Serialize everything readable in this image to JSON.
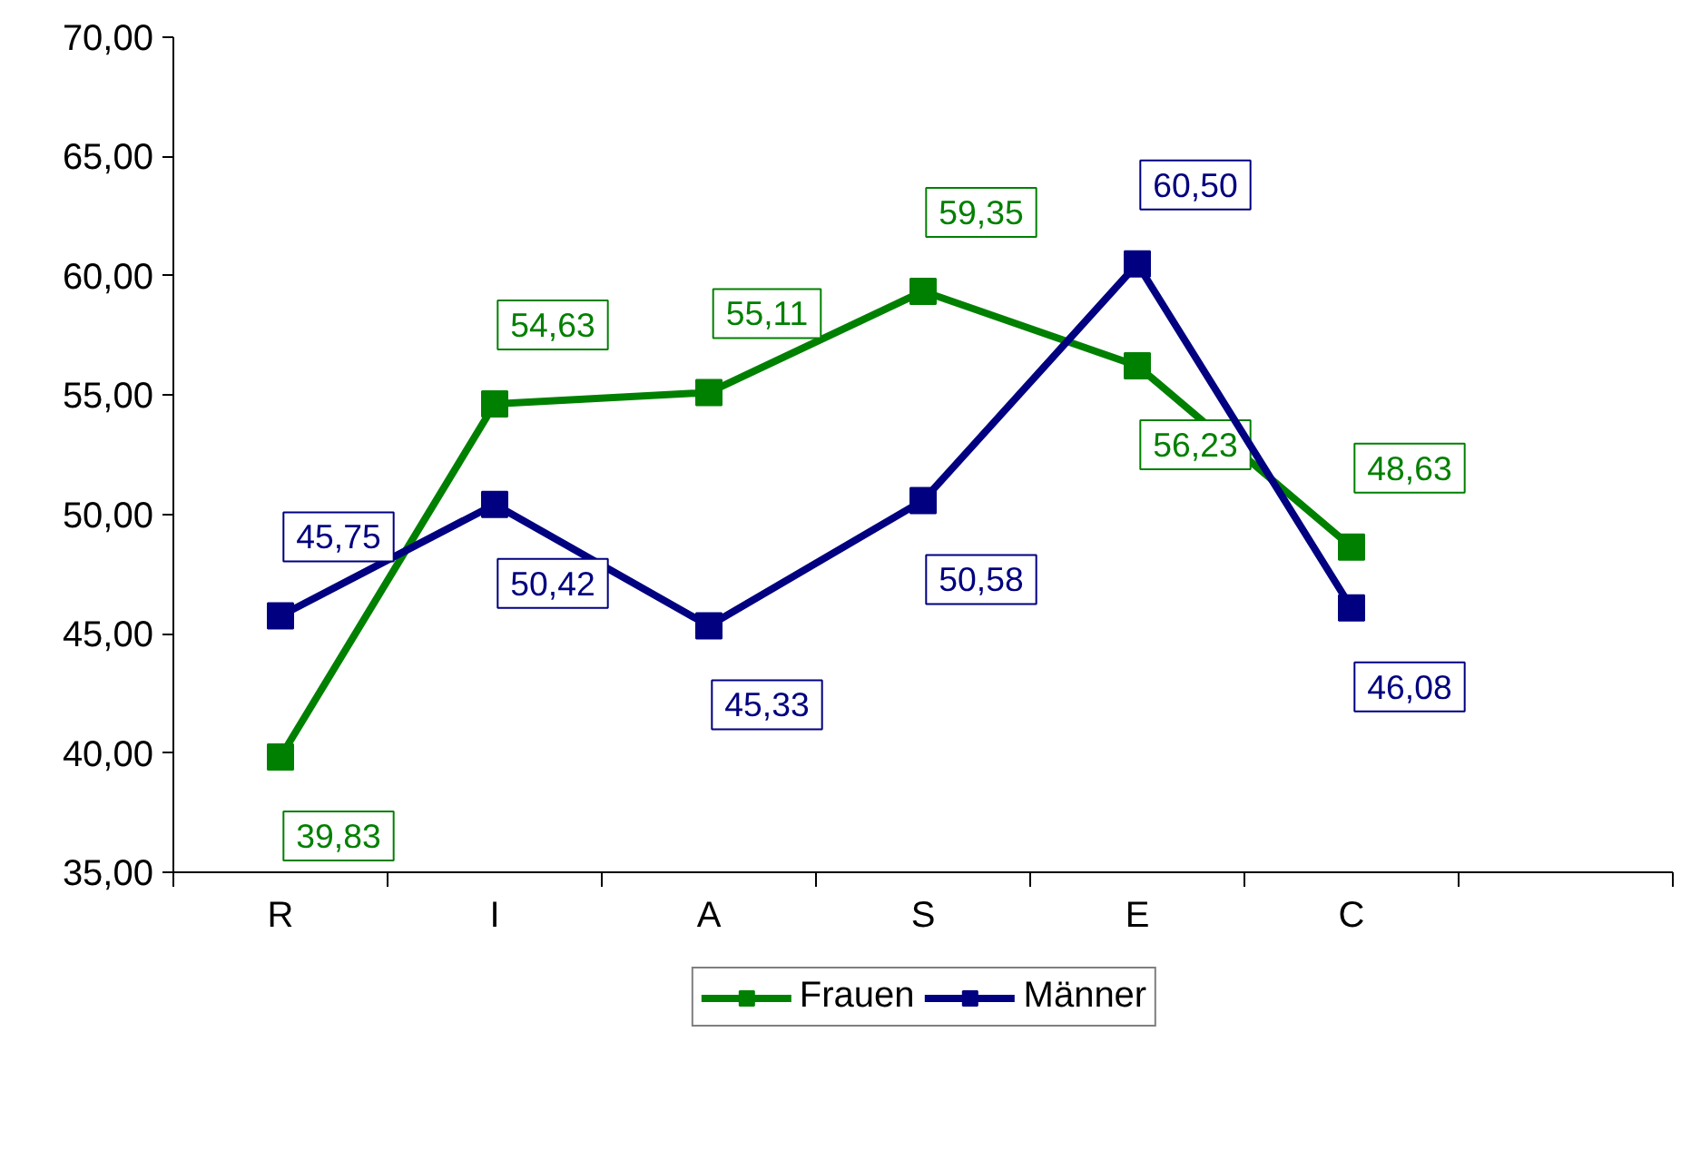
{
  "chart_data": {
    "type": "line",
    "categories": [
      "R",
      "I",
      "A",
      "S",
      "E",
      "C",
      null
    ],
    "series": [
      {
        "name": "Frauen",
        "color": "#008000",
        "values": [
          39.83,
          54.63,
          55.11,
          59.35,
          56.23,
          48.63,
          null
        ],
        "value_labels": [
          "39,83",
          "54,63",
          "55,11",
          "59,35",
          "56,23",
          "48,63",
          null
        ]
      },
      {
        "name": "Männer",
        "color": "#000080",
        "values": [
          45.75,
          50.42,
          45.33,
          50.58,
          60.5,
          46.08,
          null
        ],
        "value_labels": [
          "45,75",
          "50,42",
          "45,33",
          "50,58",
          "60,50",
          "46,08",
          null
        ]
      }
    ],
    "ylim": [
      35,
      70
    ],
    "yticks": [
      {
        "value": 35,
        "label": "35,00"
      },
      {
        "value": 40,
        "label": "40,00"
      },
      {
        "value": 45,
        "label": "45,00"
      },
      {
        "value": 50,
        "label": "50,00"
      },
      {
        "value": 55,
        "label": "55,00"
      },
      {
        "value": 60,
        "label": "60,00"
      },
      {
        "value": 65,
        "label": "65,00"
      },
      {
        "value": 70,
        "label": "70,00"
      }
    ],
    "grid": false,
    "legend": "bottom",
    "marker": "square",
    "line_style": "solid"
  }
}
